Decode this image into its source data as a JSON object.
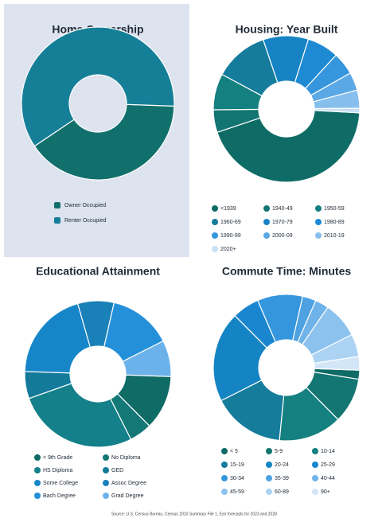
{
  "chart_data": [
    {
      "type": "pie",
      "donut": true,
      "title": "Home Ownership",
      "categories": [
        "Owner Occupied",
        "Renter Occupied"
      ],
      "values": [
        40,
        60
      ],
      "colors": [
        "#12706c",
        "#167f98"
      ]
    },
    {
      "type": "pie",
      "donut": true,
      "title": "Housing: Year Built",
      "categories": [
        "<1939",
        "1940-49",
        "1950-59",
        "1960-69",
        "1970-79",
        "1980-89",
        "1990-99",
        "2000-09",
        "2010-19",
        "2020+"
      ],
      "values": [
        44,
        5,
        8,
        12,
        10,
        7,
        5,
        4,
        4,
        1
      ],
      "colors": [
        "#0e6b66",
        "#137572",
        "#14807f",
        "#157c9c",
        "#1583c4",
        "#1e8ad4",
        "#3596dd",
        "#5aa8e6",
        "#86bfee",
        "#c8e0f6"
      ]
    },
    {
      "type": "pie",
      "donut": true,
      "title": "Educational Attainment",
      "categories": [
        "< 9th Grade",
        "No Diploma",
        "HS Diploma",
        "GED",
        "Some College",
        "Assoc Degree",
        "Bach Degree",
        "Grad Degree"
      ],
      "values": [
        12,
        5,
        27,
        6,
        20,
        8,
        14,
        8
      ],
      "colors": [
        "#0e6b66",
        "#147876",
        "#14808a",
        "#137a9a",
        "#1686c8",
        "#1a80b8",
        "#2490da",
        "#6cb2ea"
      ]
    },
    {
      "type": "pie",
      "donut": true,
      "title": "Commute Time: Minutes",
      "categories": [
        "< 5",
        "5-9",
        "10-14",
        "15-19",
        "20-24",
        "25-29",
        "30-34",
        "35-39",
        "40-44",
        "45-59",
        "60-89",
        "90+"
      ],
      "values": [
        2,
        10,
        14,
        16,
        20,
        6,
        10,
        3,
        3,
        8,
        5,
        3
      ],
      "colors": [
        "#0e6b66",
        "#137672",
        "#14807f",
        "#157c9c",
        "#1584c4",
        "#1a86d0",
        "#3596dd",
        "#4ea2e2",
        "#6fb3e8",
        "#8cc2ee",
        "#acd3f3",
        "#d3e6f8"
      ]
    }
  ],
  "source": "Source: U.S. Census Bureau, Census 2010 Summary File 1, Esri forecasts for 2023 and 2028"
}
